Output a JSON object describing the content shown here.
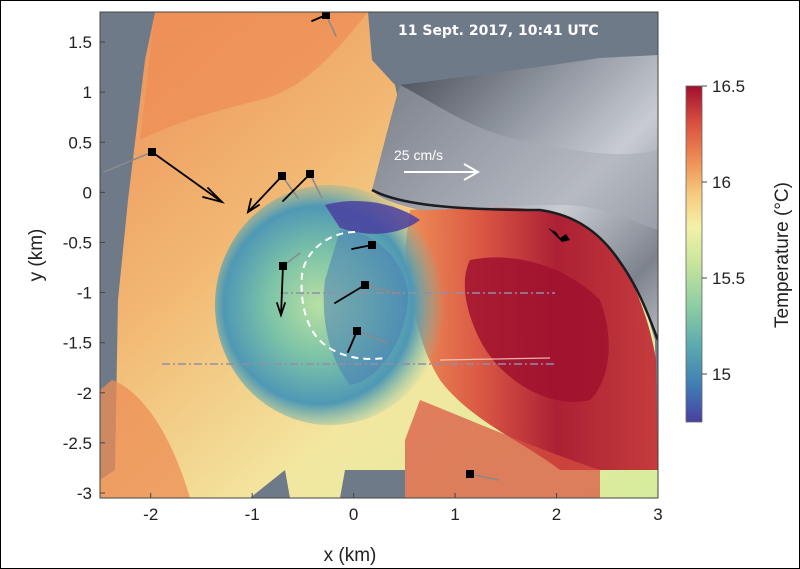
{
  "figure": {
    "timestamp": "11 Sept. 2017, 10:41 UTC",
    "scale_label": "25 cm/s",
    "x_label": "x (km)",
    "y_label": "y (km)",
    "x_ticks": [
      "-2",
      "-1",
      "0",
      "1",
      "2",
      "3"
    ],
    "y_ticks": [
      "1.5",
      "1",
      "0.5",
      "0",
      "-0.5",
      "-1",
      "-1.5",
      "-2",
      "-2.5",
      "-3"
    ],
    "colorbar": {
      "label": "Temperature (°C)",
      "ticks": [
        "16.5",
        "16",
        "15.5",
        "15"
      ],
      "range": [
        14.75,
        16.5
      ],
      "colors": [
        "#4a3fa0",
        "#3f79b4",
        "#59a8b0",
        "#8fcfa2",
        "#cbe69c",
        "#f4f1a8",
        "#f6c97e",
        "#ee8d55",
        "#d9503f",
        "#a0102e"
      ]
    },
    "colors": {
      "background": "#6f7a89",
      "terrain_dark": "#2a2f37",
      "terrain_light": "#cfd3d9",
      "arrow_black": "#000000",
      "arrow_gray": "#8a8a8a"
    }
  }
}
